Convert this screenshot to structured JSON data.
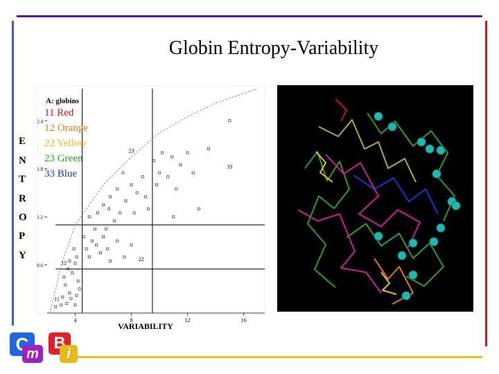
{
  "slide": {
    "title": "Globin  Entropy-Variability",
    "colors": {
      "top_rule": "#5a1aa8",
      "left_rule": "#3a5bd0",
      "right_rule": "#d01a1a",
      "bottom_rule": "#e6c21a"
    }
  },
  "ylabel_letters": [
    "E",
    "N",
    "T",
    "R",
    "O",
    "P",
    "Y"
  ],
  "legend": [
    {
      "text": "11 Red",
      "color": "#cc1111"
    },
    {
      "text": "12 Orange",
      "color": "#e07a10"
    },
    {
      "text": "22 Yellow",
      "color": "#d4c400"
    },
    {
      "text": "23 Green",
      "color": "#22a022"
    },
    {
      "text": "33 Blue",
      "color": "#2233cc"
    }
  ],
  "logo": {
    "letters": [
      "C",
      "m",
      "B",
      "i"
    ]
  },
  "chart_data": {
    "type": "scatter",
    "title": "A: globins",
    "xlabel": "VARIABILITY",
    "ylabel": "ENTROPY",
    "xlim": [
      2,
      17.5
    ],
    "ylim": [
      0,
      2.8
    ],
    "xticks": [
      4,
      8,
      12,
      16
    ],
    "yticks": [
      {
        "value": 2.4,
        "label": "2.4"
      },
      {
        "value": 1.8,
        "label": "1.8"
      },
      {
        "value": 1.2,
        "label": "1.2"
      },
      {
        "value": 0.6,
        "label": "0.6"
      }
    ],
    "boundaries": {
      "x": [
        4.5,
        9.5
      ],
      "y": [
        0.55,
        1.1
      ]
    },
    "region_labels": [
      {
        "text": "11",
        "x": 2.5,
        "y": 0.15
      },
      {
        "text": "12",
        "x": 3.0,
        "y": 0.6
      },
      {
        "text": "22",
        "x": 8.5,
        "y": 0.65
      },
      {
        "text": "23",
        "x": 7.8,
        "y": 2.0
      },
      {
        "text": "33",
        "x": 14.8,
        "y": 1.8
      }
    ],
    "curve": [
      {
        "x": 2.2,
        "y": 0.0
      },
      {
        "x": 3.0,
        "y": 0.6
      },
      {
        "x": 4.0,
        "y": 1.1
      },
      {
        "x": 6.0,
        "y": 1.6
      },
      {
        "x": 8.0,
        "y": 1.95
      },
      {
        "x": 10.0,
        "y": 2.25
      },
      {
        "x": 12.0,
        "y": 2.45
      },
      {
        "x": 14.0,
        "y": 2.62
      },
      {
        "x": 17.0,
        "y": 2.8
      }
    ],
    "points": [
      {
        "x": 2.6,
        "y": 0.08
      },
      {
        "x": 3.0,
        "y": 0.1
      },
      {
        "x": 3.4,
        "y": 0.12
      },
      {
        "x": 3.1,
        "y": 0.2
      },
      {
        "x": 3.6,
        "y": 0.25
      },
      {
        "x": 3.3,
        "y": 0.35
      },
      {
        "x": 3.7,
        "y": 0.18
      },
      {
        "x": 4.0,
        "y": 0.1
      },
      {
        "x": 4.1,
        "y": 0.22
      },
      {
        "x": 3.2,
        "y": 0.45
      },
      {
        "x": 3.5,
        "y": 0.55
      },
      {
        "x": 3.8,
        "y": 0.5
      },
      {
        "x": 4.2,
        "y": 0.4
      },
      {
        "x": 4.3,
        "y": 0.3
      },
      {
        "x": 3.6,
        "y": 0.65
      },
      {
        "x": 4.0,
        "y": 0.62
      },
      {
        "x": 3.9,
        "y": 0.8
      },
      {
        "x": 4.1,
        "y": 0.7
      },
      {
        "x": 4.6,
        "y": 0.95
      },
      {
        "x": 4.8,
        "y": 0.8
      },
      {
        "x": 5.2,
        "y": 0.9
      },
      {
        "x": 5.0,
        "y": 0.7
      },
      {
        "x": 5.5,
        "y": 0.85
      },
      {
        "x": 5.8,
        "y": 0.75
      },
      {
        "x": 6.0,
        "y": 0.95
      },
      {
        "x": 6.3,
        "y": 0.8
      },
      {
        "x": 5.4,
        "y": 1.05
      },
      {
        "x": 6.2,
        "y": 1.05
      },
      {
        "x": 6.5,
        "y": 0.65
      },
      {
        "x": 7.0,
        "y": 0.9
      },
      {
        "x": 7.5,
        "y": 0.7
      },
      {
        "x": 8.0,
        "y": 0.85
      },
      {
        "x": 5.0,
        "y": 1.2
      },
      {
        "x": 5.6,
        "y": 1.25
      },
      {
        "x": 6.0,
        "y": 1.35
      },
      {
        "x": 6.4,
        "y": 1.3
      },
      {
        "x": 6.8,
        "y": 1.15
      },
      {
        "x": 7.2,
        "y": 1.25
      },
      {
        "x": 6.5,
        "y": 1.45
      },
      {
        "x": 7.0,
        "y": 1.55
      },
      {
        "x": 7.6,
        "y": 1.4
      },
      {
        "x": 8.0,
        "y": 1.6
      },
      {
        "x": 8.4,
        "y": 1.5
      },
      {
        "x": 8.8,
        "y": 1.7
      },
      {
        "x": 9.0,
        "y": 1.45
      },
      {
        "x": 8.2,
        "y": 1.25
      },
      {
        "x": 9.2,
        "y": 1.3
      },
      {
        "x": 7.4,
        "y": 1.75
      },
      {
        "x": 9.6,
        "y": 1.9
      },
      {
        "x": 9.8,
        "y": 1.6
      },
      {
        "x": 10.0,
        "y": 1.75
      },
      {
        "x": 10.2,
        "y": 2.0
      },
      {
        "x": 10.6,
        "y": 1.7
      },
      {
        "x": 10.9,
        "y": 1.95
      },
      {
        "x": 11.2,
        "y": 1.55
      },
      {
        "x": 11.5,
        "y": 1.85
      },
      {
        "x": 12.0,
        "y": 2.0
      },
      {
        "x": 11.0,
        "y": 1.2
      },
      {
        "x": 12.4,
        "y": 1.75
      },
      {
        "x": 13.5,
        "y": 2.05
      },
      {
        "x": 12.8,
        "y": 1.3
      },
      {
        "x": 15.0,
        "y": 2.4
      }
    ]
  }
}
